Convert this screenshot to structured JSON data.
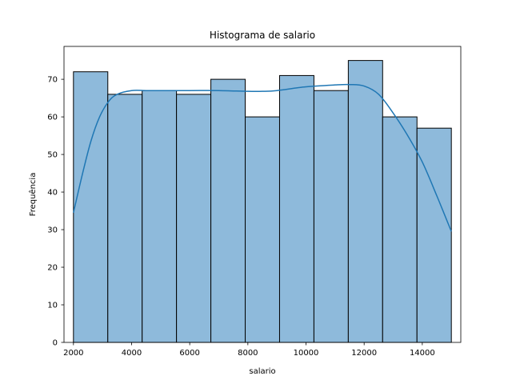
{
  "chart_data": {
    "type": "bar",
    "title": "Histograma de salario",
    "xlabel": "salario",
    "ylabel": "Frequência",
    "xlim": [
      1675,
      15325
    ],
    "ylim": [
      0,
      78.75
    ],
    "xticks": [
      2000,
      4000,
      6000,
      8000,
      10000,
      12000,
      14000
    ],
    "yticks": [
      0,
      10,
      20,
      30,
      40,
      50,
      60,
      70
    ],
    "bins": [
      {
        "start": 2000,
        "end": 3182,
        "count": 72
      },
      {
        "start": 3182,
        "end": 4364,
        "count": 66
      },
      {
        "start": 4364,
        "end": 5545,
        "count": 67
      },
      {
        "start": 5545,
        "end": 6727,
        "count": 66
      },
      {
        "start": 6727,
        "end": 7909,
        "count": 70
      },
      {
        "start": 7909,
        "end": 9091,
        "count": 60
      },
      {
        "start": 9091,
        "end": 10273,
        "count": 71
      },
      {
        "start": 10273,
        "end": 11455,
        "count": 67
      },
      {
        "start": 11455,
        "end": 12636,
        "count": 75
      },
      {
        "start": 12636,
        "end": 13818,
        "count": 60
      },
      {
        "start": 13818,
        "end": 15000,
        "count": 57
      }
    ],
    "kde": {
      "x": [
        2000,
        2300,
        2600,
        2900,
        3200,
        3500,
        4000,
        4500,
        5000,
        6000,
        7000,
        8000,
        8500,
        9000,
        10000,
        11000,
        11500,
        12000,
        12500,
        13000,
        13500,
        14000,
        14500,
        15000
      ],
      "y": [
        34.5,
        44.5,
        53.5,
        60,
        64,
        66,
        67,
        67,
        67,
        67,
        67,
        66.8,
        66.8,
        67,
        68,
        68.5,
        68.6,
        68.2,
        66,
        61,
        55,
        48,
        39,
        29.5
      ]
    },
    "colors": {
      "bar_fill": "#8ebadb",
      "bar_edge": "#000000",
      "kde_line": "#1f77b4"
    },
    "grid": false
  }
}
